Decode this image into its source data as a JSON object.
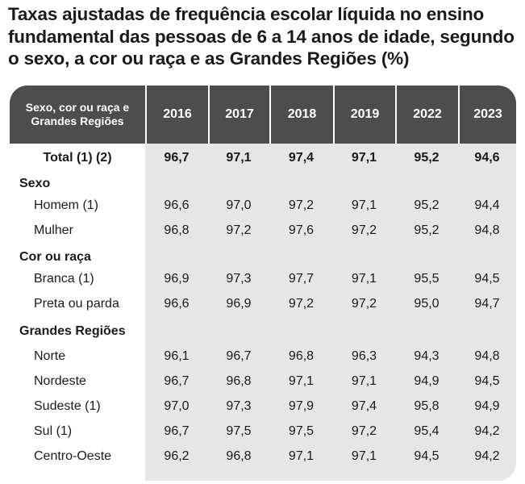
{
  "title": "Taxas ajustadas de frequência escolar líquida no ensino fundamental das pessoas de 6 a 14 anos de idade, segundo o sexo, a cor ou raça e as Grandes Regiões (%)",
  "chart_data": {
    "type": "table",
    "title": "Taxas ajustadas de frequência escolar líquida no ensino fundamental das pessoas de 6 a 14 anos de idade, segundo o sexo, a cor ou raça e as Grandes Regiões (%)",
    "header_label": "Sexo, cor ou raça e Grandes Regiões",
    "columns": [
      "2016",
      "2017",
      "2018",
      "2019",
      "2022",
      "2023"
    ],
    "rows": [
      {
        "label": "Total (1) (2)",
        "kind": "total",
        "values": [
          "96,7",
          "97,1",
          "97,4",
          "97,1",
          "95,2",
          "94,6"
        ]
      },
      {
        "label": "Sexo",
        "kind": "section"
      },
      {
        "label": "Homem (1)",
        "kind": "item",
        "values": [
          "96,6",
          "97,0",
          "97,2",
          "97,1",
          "95,2",
          "94,4"
        ]
      },
      {
        "label": "Mulher",
        "kind": "item",
        "values": [
          "96,8",
          "97,2",
          "97,6",
          "97,2",
          "95,2",
          "94,8"
        ]
      },
      {
        "label": "Cor ou raça",
        "kind": "section"
      },
      {
        "label": "Branca (1)",
        "kind": "item",
        "values": [
          "96,9",
          "97,3",
          "97,7",
          "97,1",
          "95,5",
          "94,5"
        ]
      },
      {
        "label": "Preta ou parda",
        "kind": "item",
        "values": [
          "96,6",
          "96,9",
          "97,2",
          "97,2",
          "95,0",
          "94,7"
        ]
      },
      {
        "label": "Grandes Regiões",
        "kind": "section"
      },
      {
        "label": "Norte",
        "kind": "item",
        "values": [
          "96,1",
          "96,7",
          "96,8",
          "96,3",
          "94,3",
          "94,8"
        ]
      },
      {
        "label": "Nordeste",
        "kind": "item",
        "values": [
          "96,7",
          "96,8",
          "97,1",
          "97,1",
          "94,9",
          "94,5"
        ]
      },
      {
        "label": "Sudeste (1)",
        "kind": "item",
        "values": [
          "97,0",
          "97,3",
          "97,9",
          "97,4",
          "95,8",
          "94,9"
        ]
      },
      {
        "label": "Sul (1)",
        "kind": "item",
        "values": [
          "96,7",
          "97,5",
          "97,5",
          "97,2",
          "95,4",
          "94,2"
        ]
      },
      {
        "label": "Centro-Oeste",
        "kind": "item",
        "values": [
          "96,2",
          "96,8",
          "97,1",
          "97,1",
          "94,5",
          "94,2"
        ]
      }
    ],
    "colors": {
      "header_bg": "#4d4d4d",
      "body_bg": "#e6e6e6",
      "label_col_bg": "#ffffff"
    }
  }
}
